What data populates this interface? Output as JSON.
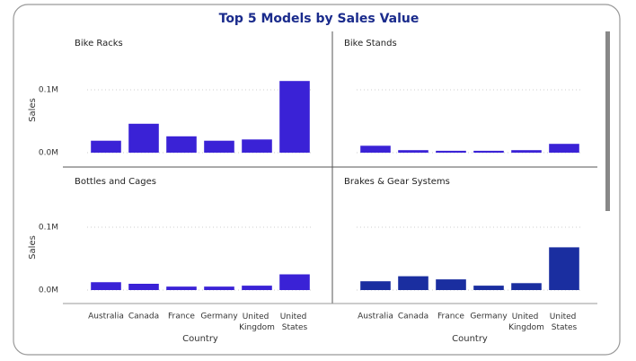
{
  "title": "Top 5 Models by Sales Value",
  "chart_data": [
    {
      "type": "bar",
      "title": "Bike Racks",
      "ylabel": "Sales",
      "color": "#3a22d6",
      "categories": [
        "Australia",
        "Canada",
        "France",
        "Germany",
        "United Kingdom",
        "United States"
      ],
      "values": [
        19000,
        46000,
        26000,
        19000,
        21000,
        114000
      ],
      "ylim": [
        0,
        150000
      ],
      "yticks": [
        {
          "value": 0,
          "label": "0.0M"
        },
        {
          "value": 100000,
          "label": "0.1M"
        }
      ],
      "grid": true
    },
    {
      "type": "bar",
      "title": "Bike Stands",
      "color": "#3a22d6",
      "categories": [
        "Australia",
        "Canada",
        "France",
        "Germany",
        "United Kingdom",
        "United States"
      ],
      "values": [
        11000,
        4000,
        3000,
        3000,
        4000,
        14000
      ],
      "ylim": [
        0,
        150000
      ],
      "yticks": [
        0,
        100000
      ],
      "ytick_labels": false,
      "grid": true
    },
    {
      "type": "bar",
      "title": "Bottles and Cages",
      "ylabel": "Sales",
      "xlabel": "Country",
      "color": "#3a22d6",
      "categories": [
        "Australia",
        "Canada",
        "France",
        "Germany",
        "United Kingdom",
        "United States"
      ],
      "values": [
        12500,
        10000,
        5500,
        5500,
        7000,
        25000
      ],
      "ylim": [
        0,
        150000
      ],
      "yticks": [
        {
          "value": 0,
          "label": "0.0M"
        },
        {
          "value": 100000,
          "label": "0.1M"
        }
      ],
      "grid": true
    },
    {
      "type": "bar",
      "title": "Brakes & Gear Systems",
      "xlabel": "Country",
      "color": "#1a2ea0",
      "categories": [
        "Australia",
        "Canada",
        "France",
        "Germany",
        "United Kingdom",
        "United States"
      ],
      "values": [
        14000,
        22000,
        17000,
        7000,
        11000,
        68000
      ],
      "ylim": [
        0,
        150000
      ],
      "yticks": [
        0,
        100000
      ],
      "ytick_labels": false,
      "grid": true
    }
  ]
}
